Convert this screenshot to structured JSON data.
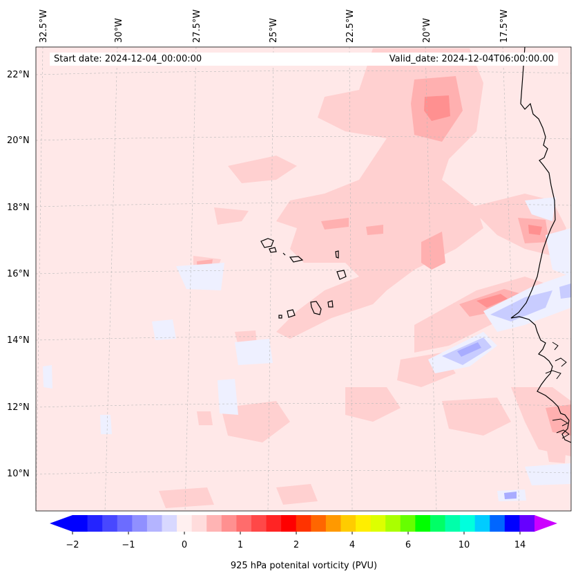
{
  "header": {
    "start_date": "Start date: 2024-12-04_00:00:00",
    "valid_date": "Valid_date: 2024-12-04T06:00:00.00"
  },
  "lon_labels": [
    "32.5°W",
    "30°W",
    "27.5°W",
    "25°W",
    "22.5°W",
    "20°W",
    "17.5°W"
  ],
  "lat_labels": [
    "22°N",
    "20°N",
    "18°N",
    "16°N",
    "14°N",
    "12°N",
    "10°N"
  ],
  "colorbar": {
    "label": "925 hPa potenital vorticity (PVU)",
    "tick_labels": [
      "−2",
      "−1",
      "0",
      "1",
      "2",
      "4",
      "6",
      "10",
      "14"
    ],
    "colors": [
      "#0000ff",
      "#2424ff",
      "#4848ff",
      "#6c6cff",
      "#9090ff",
      "#b4b4ff",
      "#d8d8ff",
      "#fff0f0",
      "#ffdcdc",
      "#ffb4b4",
      "#ff9090",
      "#ff6c6c",
      "#ff4848",
      "#ff2424",
      "#ff0000",
      "#ff3300",
      "#ff6600",
      "#ff9900",
      "#ffcc00",
      "#ffee00",
      "#ddff00",
      "#aaff00",
      "#66ff00",
      "#00ff00",
      "#00ff66",
      "#00ffaa",
      "#00ffdd",
      "#00ccff",
      "#0066ff",
      "#0000ff",
      "#6600ff"
    ],
    "under_color": "#0000ff",
    "over_color": "#cc00ff"
  },
  "map": {
    "background_color": "#ffe8e8",
    "field_colors": {
      "weak_negative": "#eef0ff",
      "moderate_negative": "#c8ccff",
      "strong_negative": "#a8acff",
      "weak_positive": "#ffd0d0",
      "moderate_positive": "#ffb8b8",
      "strong_positive": "#ff9090"
    }
  }
}
